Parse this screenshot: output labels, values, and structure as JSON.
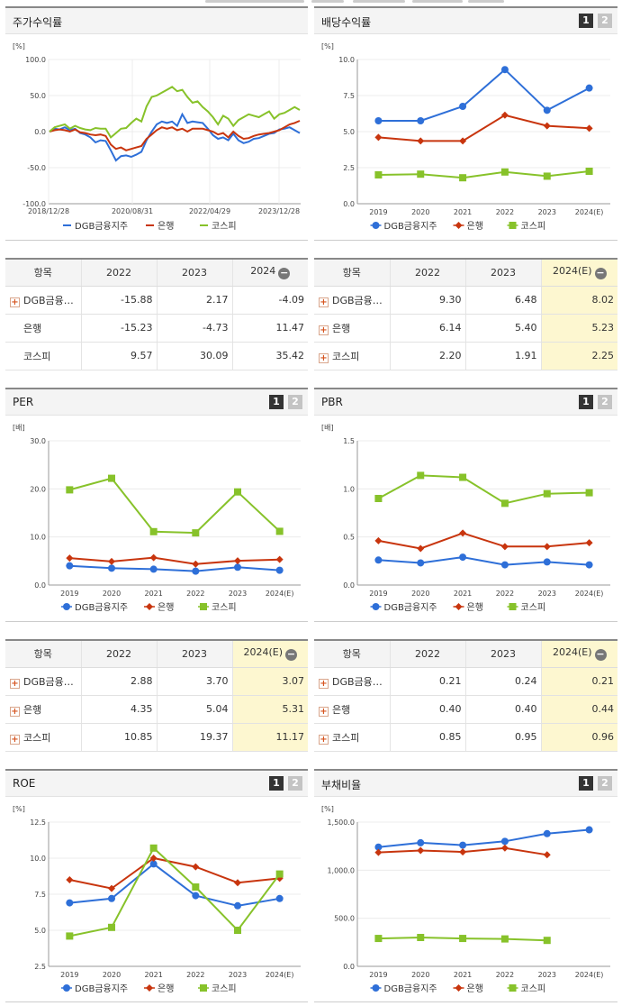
{
  "colors": {
    "dgb": "#2e6fd8",
    "bank": "#c8350e",
    "kospi": "#87c22a"
  },
  "legend": [
    "DGB금융지주",
    "은행",
    "코스피"
  ],
  "tabs": [
    "1",
    "2"
  ],
  "panels": {
    "stock": {
      "title": "주가수익률",
      "chart_data": {
        "type": "line",
        "unit": "[%]",
        "ylim": [
          -100,
          100
        ],
        "yticks": [
          "100.0",
          "50.0",
          "0.0",
          "-50.0",
          "-100.0"
        ],
        "xticks": [
          "2018/12/28",
          "2020/08/31",
          "2022/04/29",
          "2023/12/28"
        ],
        "series": [
          {
            "name": "DGB금융지주",
            "values": [
              0,
              4,
              3,
              6,
              2,
              4,
              -2,
              -4,
              -8,
              -15,
              -12,
              -13,
              -26,
              -40,
              -34,
              -33,
              -35,
              -32,
              -28,
              -12,
              0,
              10,
              14,
              12,
              14,
              8,
              24,
              12,
              14,
              13,
              12,
              4,
              -5,
              -10,
              -8,
              -12,
              -3,
              -12,
              -16,
              -14,
              -10,
              -9,
              -6,
              -3,
              -2,
              3,
              4,
              6,
              2,
              -2
            ]
          },
          {
            "name": "은행",
            "values": [
              0,
              2,
              3,
              2,
              0,
              3,
              -1,
              -2,
              -4,
              -5,
              -4,
              -6,
              -18,
              -24,
              -22,
              -26,
              -24,
              -22,
              -20,
              -10,
              -4,
              2,
              6,
              4,
              6,
              2,
              4,
              0,
              4,
              4,
              4,
              2,
              0,
              -4,
              -2,
              -8,
              0,
              -6,
              -10,
              -9,
              -6,
              -4,
              -3,
              -2,
              0,
              2,
              6,
              10,
              12,
              15
            ]
          },
          {
            "name": "코스피",
            "values": [
              0,
              6,
              8,
              10,
              4,
              8,
              5,
              3,
              2,
              5,
              4,
              4,
              -8,
              -2,
              4,
              5,
              12,
              18,
              14,
              35,
              48,
              50,
              54,
              58,
              62,
              56,
              58,
              48,
              40,
              42,
              34,
              28,
              20,
              10,
              22,
              18,
              8,
              16,
              20,
              24,
              22,
              20,
              24,
              28,
              18,
              24,
              26,
              30,
              34,
              30
            ]
          }
        ]
      }
    },
    "dividend": {
      "title": "배당수익률",
      "chart_data": {
        "type": "line",
        "unit": "[%]",
        "ylim": [
          0,
          10
        ],
        "yticks": [
          "10.0",
          "7.5",
          "5.0",
          "2.5",
          "0.0"
        ],
        "categories": [
          "2019",
          "2020",
          "2021",
          "2022",
          "2023",
          "2024(E)"
        ],
        "series": [
          {
            "name": "DGB금융지주",
            "values": [
              5.75,
              5.75,
              6.75,
              9.3,
              6.48,
              8.02
            ]
          },
          {
            "name": "은행",
            "values": [
              4.6,
              4.35,
              4.35,
              6.14,
              5.4,
              5.23
            ]
          },
          {
            "name": "코스피",
            "values": [
              2.0,
              2.05,
              1.8,
              2.2,
              1.91,
              2.25
            ]
          }
        ]
      }
    },
    "per": {
      "title": "PER",
      "chart_data": {
        "type": "line",
        "unit": "[배]",
        "ylim": [
          0,
          30
        ],
        "yticks": [
          "30.0",
          "20.0",
          "10.0",
          "0.0"
        ],
        "categories": [
          "2019",
          "2020",
          "2021",
          "2022",
          "2023",
          "2024(E)"
        ],
        "series": [
          {
            "name": "DGB금융지주",
            "values": [
              4.0,
              3.5,
              3.3,
              2.88,
              3.7,
              3.07
            ]
          },
          {
            "name": "은행",
            "values": [
              5.6,
              4.9,
              5.7,
              4.35,
              5.04,
              5.31
            ]
          },
          {
            "name": "코스피",
            "values": [
              19.8,
              22.2,
              11.1,
              10.85,
              19.37,
              11.17
            ]
          }
        ]
      }
    },
    "pbr": {
      "title": "PBR",
      "chart_data": {
        "type": "line",
        "unit": "[배]",
        "ylim": [
          0,
          1.5
        ],
        "yticks": [
          "1.5",
          "1.0",
          "0.5",
          "0.0"
        ],
        "categories": [
          "2019",
          "2020",
          "2021",
          "2022",
          "2023",
          "2024(E)"
        ],
        "series": [
          {
            "name": "DGB금융지주",
            "values": [
              0.26,
              0.23,
              0.29,
              0.21,
              0.24,
              0.21
            ]
          },
          {
            "name": "은행",
            "values": [
              0.46,
              0.38,
              0.54,
              0.4,
              0.4,
              0.44
            ]
          },
          {
            "name": "코스피",
            "values": [
              0.9,
              1.14,
              1.12,
              0.85,
              0.95,
              0.96
            ]
          }
        ]
      }
    },
    "roe": {
      "title": "ROE",
      "chart_data": {
        "type": "line",
        "unit": "[%]",
        "ylim": [
          2.5,
          12.5
        ],
        "yticks": [
          "12.5",
          "10.0",
          "7.5",
          "5.0",
          "2.5"
        ],
        "categories": [
          "2019",
          "2020",
          "2021",
          "2022",
          "2023",
          "2024(E)"
        ],
        "series": [
          {
            "name": "DGB금융지주",
            "values": [
              6.9,
              7.2,
              9.6,
              7.4,
              6.7,
              7.2
            ]
          },
          {
            "name": "은행",
            "values": [
              8.5,
              7.9,
              10.0,
              9.4,
              8.3,
              8.6
            ]
          },
          {
            "name": "코스피",
            "values": [
              4.6,
              5.2,
              10.7,
              8.0,
              5.0,
              8.9
            ]
          }
        ]
      }
    },
    "debt": {
      "title": "부채비율",
      "chart_data": {
        "type": "line",
        "unit": "[%]",
        "ylim": [
          0,
          1500
        ],
        "yticks": [
          "1,500.0",
          "1,000.0",
          "500.0",
          "0.0"
        ],
        "categories": [
          "2019",
          "2020",
          "2021",
          "2022",
          "2023",
          "2024(E)"
        ],
        "series": [
          {
            "name": "DGB금융지주",
            "values": [
              1240,
              1285,
              1260,
              1300,
              1380,
              1420
            ]
          },
          {
            "name": "은행",
            "values": [
              1185,
              1205,
              1190,
              1230,
              1160,
              null
            ]
          },
          {
            "name": "코스피",
            "values": [
              290,
              300,
              290,
              285,
              270,
              null
            ]
          }
        ]
      }
    }
  },
  "tables": {
    "stock": {
      "headers": [
        "항목",
        "2022",
        "2023",
        "2024"
      ],
      "highlight": false,
      "rows": [
        {
          "name": "DGB금융…",
          "plus": true,
          "values": [
            "-15.88",
            "2.17",
            "-4.09"
          ]
        },
        {
          "name": "은행",
          "plus": false,
          "values": [
            "-15.23",
            "-4.73",
            "11.47"
          ]
        },
        {
          "name": "코스피",
          "plus": false,
          "values": [
            "9.57",
            "30.09",
            "35.42"
          ]
        }
      ]
    },
    "dividend": {
      "headers": [
        "항목",
        "2022",
        "2023",
        "2024(E)"
      ],
      "highlight": true,
      "rows": [
        {
          "name": "DGB금융…",
          "plus": true,
          "values": [
            "9.30",
            "6.48",
            "8.02"
          ]
        },
        {
          "name": "은행",
          "plus": true,
          "values": [
            "6.14",
            "5.40",
            "5.23"
          ]
        },
        {
          "name": "코스피",
          "plus": true,
          "values": [
            "2.20",
            "1.91",
            "2.25"
          ]
        }
      ]
    },
    "per": {
      "headers": [
        "항목",
        "2022",
        "2023",
        "2024(E)"
      ],
      "highlight": true,
      "rows": [
        {
          "name": "DGB금융…",
          "plus": true,
          "values": [
            "2.88",
            "3.70",
            "3.07"
          ]
        },
        {
          "name": "은행",
          "plus": true,
          "values": [
            "4.35",
            "5.04",
            "5.31"
          ]
        },
        {
          "name": "코스피",
          "plus": true,
          "values": [
            "10.85",
            "19.37",
            "11.17"
          ]
        }
      ]
    },
    "pbr": {
      "headers": [
        "항목",
        "2022",
        "2023",
        "2024(E)"
      ],
      "highlight": true,
      "rows": [
        {
          "name": "DGB금융…",
          "plus": true,
          "values": [
            "0.21",
            "0.24",
            "0.21"
          ]
        },
        {
          "name": "은행",
          "plus": true,
          "values": [
            "0.40",
            "0.40",
            "0.44"
          ]
        },
        {
          "name": "코스피",
          "plus": true,
          "values": [
            "0.85",
            "0.95",
            "0.96"
          ]
        }
      ]
    }
  }
}
